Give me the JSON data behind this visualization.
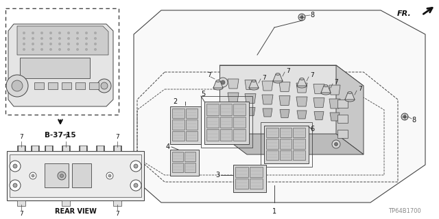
{
  "bg_color": "#ffffff",
  "fig_width": 6.4,
  "fig_height": 3.19,
  "title_code": "TP64B1700",
  "fr_label": "FR.",
  "ref_label": "B-37-15",
  "rear_view_label": "REAR VIEW",
  "gray": "#444444",
  "lgray": "#aaaaaa",
  "mgray": "#777777",
  "dgray": "#111111",
  "part_bg": "#e8e8e8",
  "outline_bg": "#f8f8f8"
}
